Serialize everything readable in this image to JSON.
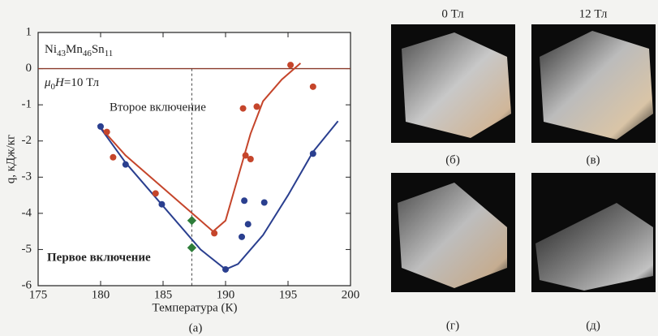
{
  "chart_data": {
    "type": "scatter",
    "composition": [
      "Ni",
      "43",
      "Mn",
      "46",
      "Sn",
      "11"
    ],
    "field": [
      "μ",
      "0",
      "H",
      "=10 Тл"
    ],
    "x_label": "Температура (К)",
    "y_label": "q, кДж/кг",
    "panel_label": "(а)",
    "xlim": [
      175,
      200
    ],
    "ylim": [
      -6,
      1
    ],
    "xticks": [
      175,
      180,
      185,
      190,
      195,
      200
    ],
    "yticks": [
      1,
      0,
      -1,
      -2,
      -3,
      -4,
      -5,
      -6
    ],
    "zero_line_color": "#8a3a2a",
    "marker_line_x": 187.3,
    "series": [
      {
        "name": "Второе включение",
        "color": "#c5452b",
        "x": [
          180.5,
          181,
          184.4,
          189.1,
          191.4,
          191.6,
          192,
          192.5,
          195.2,
          197
        ],
        "values": [
          -1.75,
          -2.45,
          -3.45,
          -4.55,
          -1.1,
          -2.4,
          -2.5,
          -1.05,
          0.1,
          -0.5
        ]
      },
      {
        "name": "Первое включение",
        "color": "#2a3f8f",
        "x": [
          180,
          182,
          184.9,
          190,
          191.3,
          191.5,
          191.8,
          193.1,
          197
        ],
        "values": [
          -1.6,
          -2.65,
          -3.75,
          -5.55,
          -4.65,
          -3.65,
          -4.3,
          -3.7,
          -2.35
        ]
      }
    ],
    "extra_points": {
      "color": "#2e7d3a",
      "x": [
        187.3,
        187.3
      ],
      "values": [
        -4.2,
        -4.95
      ]
    },
    "fits": [
      {
        "color": "#c5452b",
        "x": [
          179.8,
          182,
          185,
          188,
          189,
          190,
          191,
          192,
          193,
          194.5,
          196
        ],
        "values": [
          -1.55,
          -2.4,
          -3.3,
          -4.2,
          -4.5,
          -4.2,
          -3.0,
          -1.8,
          -0.9,
          -0.3,
          0.15
        ]
      },
      {
        "color": "#2a3f8f",
        "x": [
          179.8,
          182,
          185,
          188,
          190,
          191,
          193,
          195,
          197,
          199
        ],
        "values": [
          -1.55,
          -2.6,
          -3.8,
          -5.0,
          -5.55,
          -5.4,
          -4.6,
          -3.5,
          -2.3,
          -1.45
        ]
      }
    ]
  },
  "photos": {
    "titles": [
      "0 Тл",
      "12 Тл"
    ],
    "labels": [
      "(б)",
      "(в)",
      "(г)",
      "(д)"
    ]
  }
}
